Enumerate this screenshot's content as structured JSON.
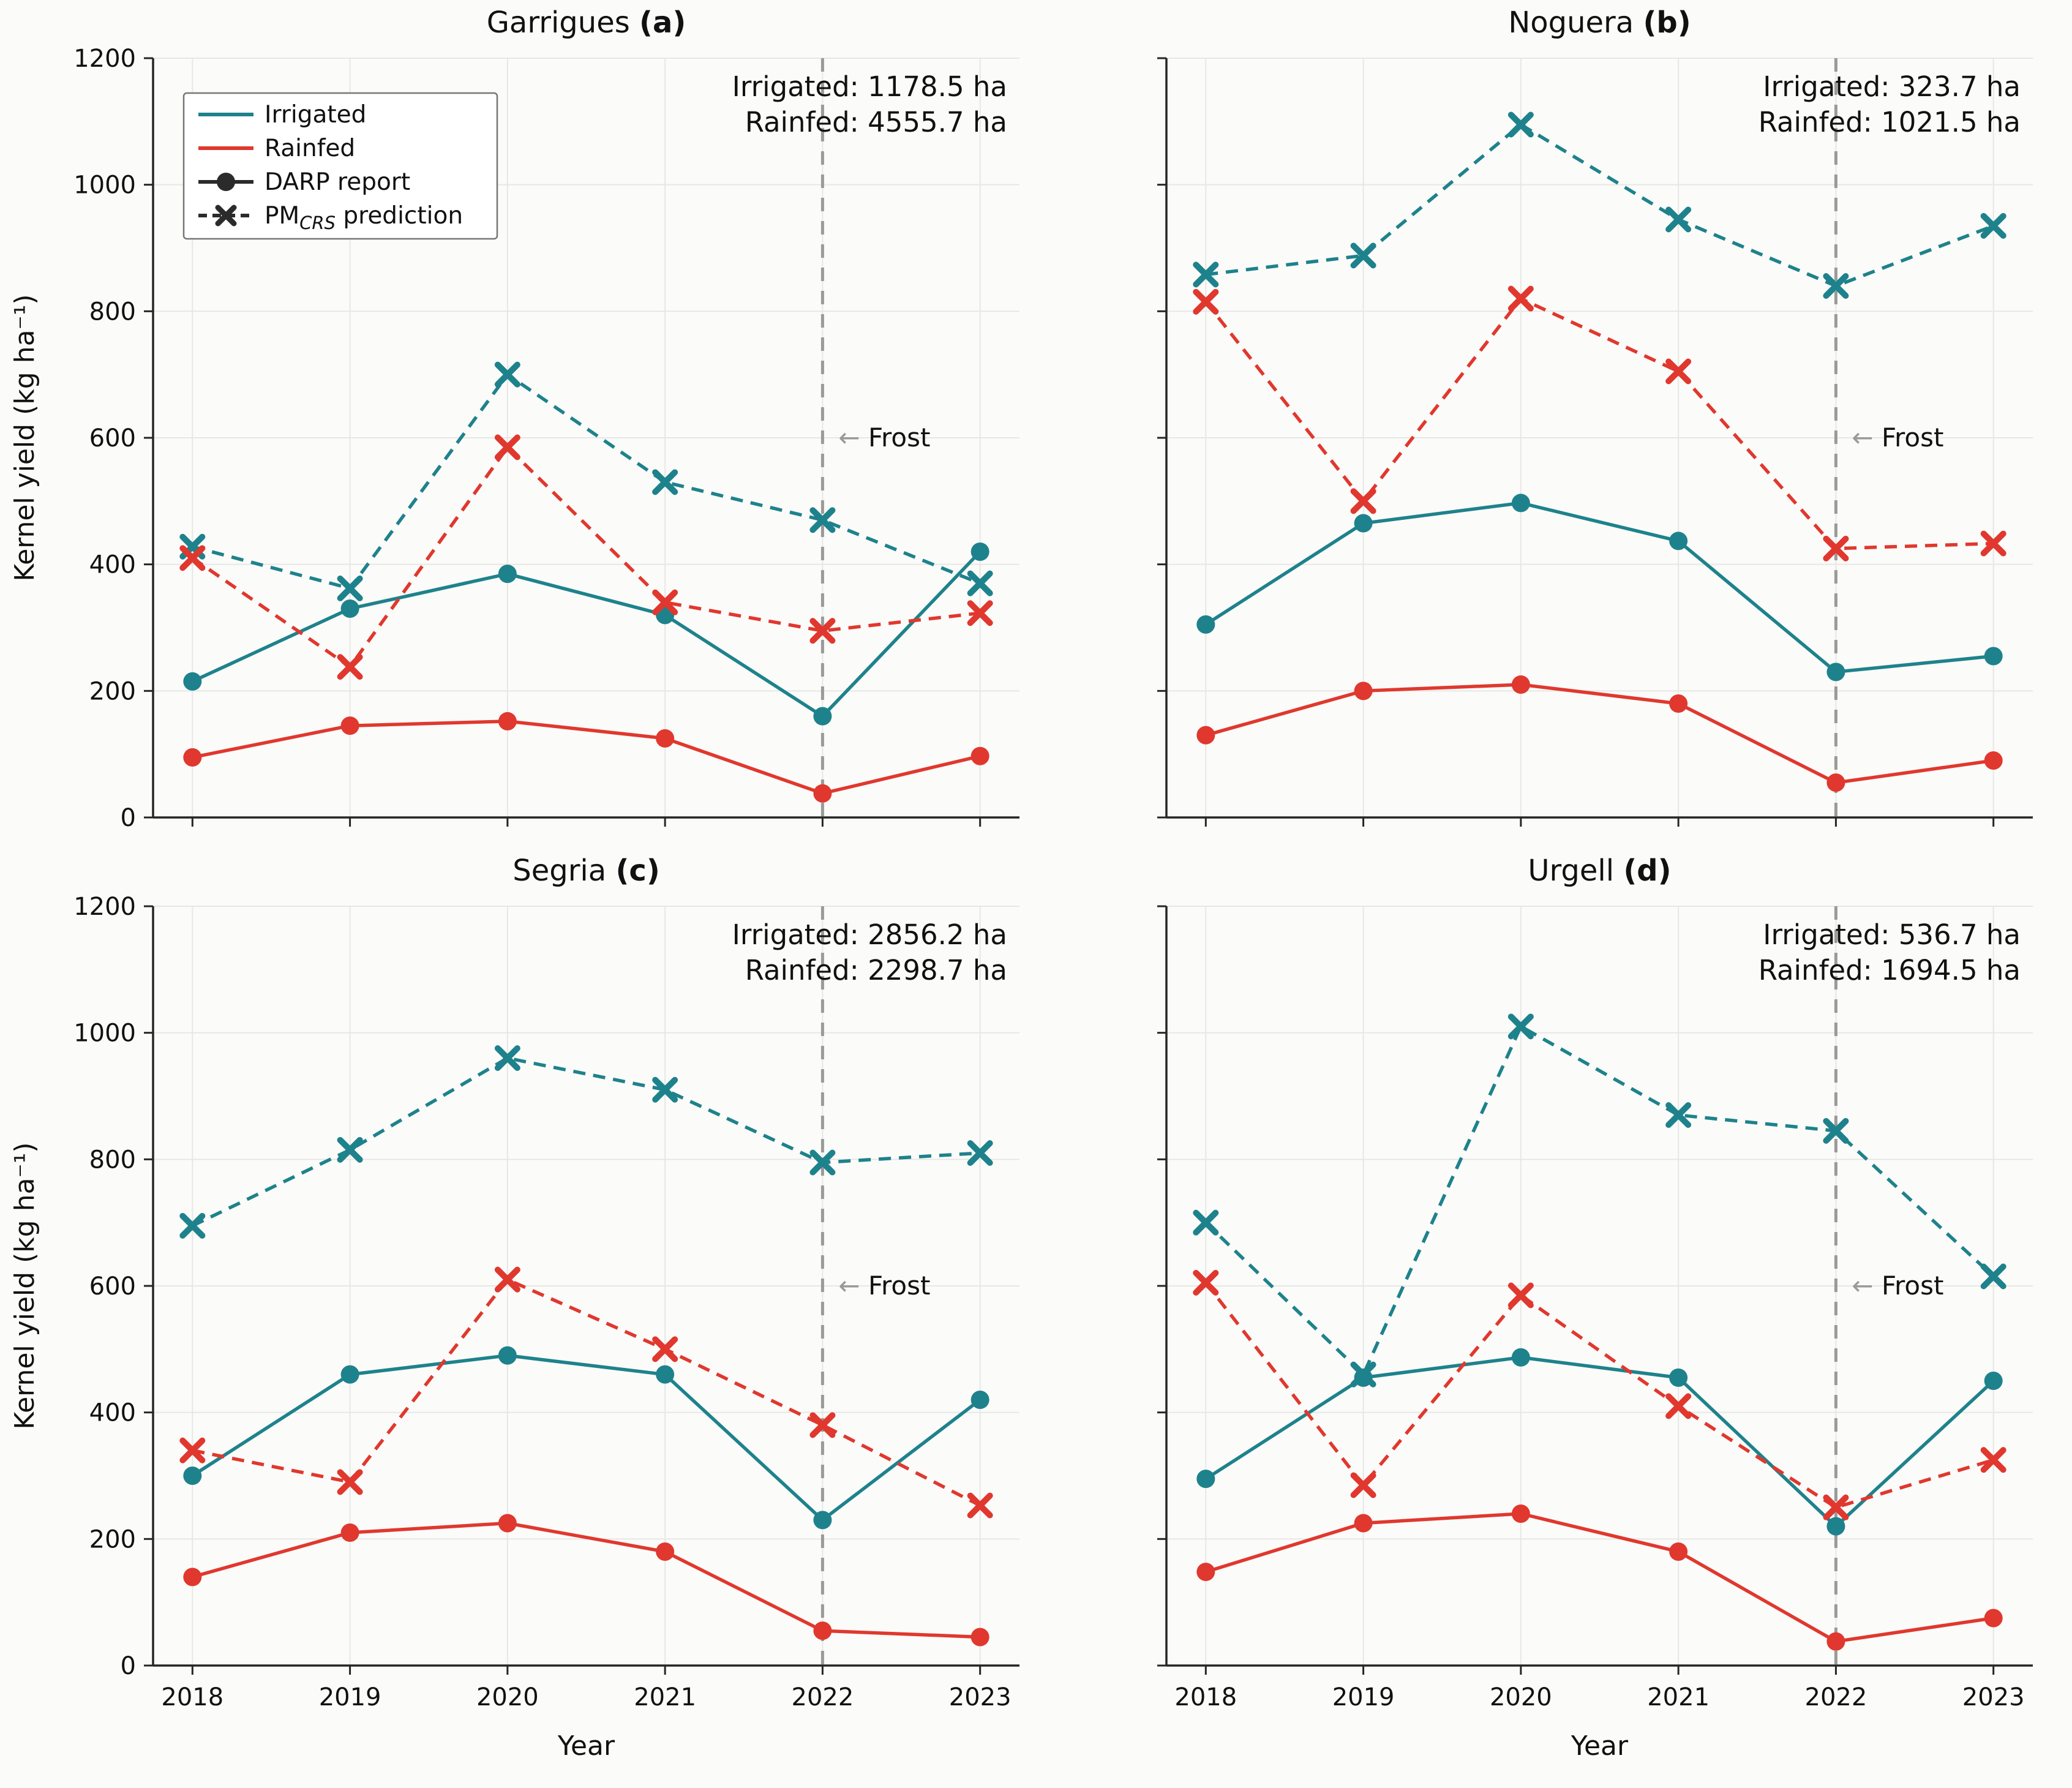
{
  "figure": {
    "ylabel": "Kernel yield (kg ha⁻¹)",
    "xlabel": "Year",
    "years": [
      2018,
      2019,
      2020,
      2021,
      2022,
      2023
    ],
    "ylim": [
      0,
      1200
    ],
    "yticks": [
      0,
      200,
      400,
      600,
      800,
      1000,
      1200
    ],
    "frost_year": 2022,
    "frost_label": "Frost",
    "frost_arrow": "←",
    "colors": {
      "irrigated": "#1e828c",
      "rainfed": "#e0382e",
      "marker": "#2b2b2b",
      "frost": "#9a9a9a",
      "grid": "#e7e7e5",
      "axis": "#262626",
      "text": "#111111"
    },
    "legend": [
      {
        "label": "Irrigated",
        "swatch": "line",
        "color_key": "irrigated"
      },
      {
        "label": "Rainfed",
        "swatch": "line",
        "color_key": "rainfed"
      },
      {
        "label": "DARP report",
        "swatch": "circle-line",
        "color_key": "marker"
      },
      {
        "label": "PM_CRS prediction",
        "swatch": "x-dashed",
        "color_key": "marker",
        "parts": [
          {
            "t": "PM"
          },
          {
            "t": "CRS",
            "sub": true
          },
          {
            "t": " prediction"
          }
        ]
      }
    ]
  },
  "chart_data": [
    {
      "type": "line",
      "title": "Garrigues",
      "letter": "(a)",
      "annotation": [
        "Irrigated: 1178.5 ha",
        "Rainfed: 4555.7 ha"
      ],
      "x": [
        2018,
        2019,
        2020,
        2021,
        2022,
        2023
      ],
      "series": [
        {
          "id": "irrigated-darp",
          "name": "Irrigated DARP report",
          "color_key": "irrigated",
          "style": "solid",
          "marker": "circle",
          "values": [
            215,
            330,
            385,
            320,
            160,
            420
          ]
        },
        {
          "id": "rainfed-darp",
          "name": "Rainfed DARP report",
          "color_key": "rainfed",
          "style": "solid",
          "marker": "circle",
          "values": [
            95,
            145,
            152,
            125,
            38,
            97
          ]
        },
        {
          "id": "irrigated-pmcrs",
          "name": "Irrigated PM_CRS prediction",
          "color_key": "irrigated",
          "style": "dashed",
          "marker": "x",
          "values": [
            428,
            362,
            700,
            530,
            470,
            370
          ]
        },
        {
          "id": "rainfed-pmcrs",
          "name": "Rainfed PM_CRS prediction",
          "color_key": "rainfed",
          "style": "dashed",
          "marker": "x",
          "values": [
            410,
            238,
            585,
            340,
            295,
            323
          ]
        }
      ]
    },
    {
      "type": "line",
      "title": "Noguera",
      "letter": "(b)",
      "annotation": [
        "Irrigated: 323.7 ha",
        "Rainfed: 1021.5 ha"
      ],
      "x": [
        2018,
        2019,
        2020,
        2021,
        2022,
        2023
      ],
      "series": [
        {
          "id": "irrigated-darp",
          "name": "Irrigated DARP report",
          "color_key": "irrigated",
          "style": "solid",
          "marker": "circle",
          "values": [
            305,
            465,
            497,
            437,
            230,
            255
          ]
        },
        {
          "id": "rainfed-darp",
          "name": "Rainfed DARP report",
          "color_key": "rainfed",
          "style": "solid",
          "marker": "circle",
          "values": [
            130,
            200,
            210,
            180,
            55,
            90
          ]
        },
        {
          "id": "irrigated-pmcrs",
          "name": "Irrigated PM_CRS prediction",
          "color_key": "irrigated",
          "style": "dashed",
          "marker": "x",
          "values": [
            858,
            888,
            1095,
            945,
            840,
            935
          ]
        },
        {
          "id": "rainfed-pmcrs",
          "name": "Rainfed PM_CRS prediction",
          "color_key": "rainfed",
          "style": "dashed",
          "marker": "x",
          "values": [
            815,
            500,
            820,
            705,
            425,
            433
          ]
        }
      ]
    },
    {
      "type": "line",
      "title": "Segria",
      "letter": "(c)",
      "annotation": [
        "Irrigated: 2856.2 ha",
        "Rainfed: 2298.7 ha"
      ],
      "x": [
        2018,
        2019,
        2020,
        2021,
        2022,
        2023
      ],
      "series": [
        {
          "id": "irrigated-darp",
          "name": "Irrigated DARP report",
          "color_key": "irrigated",
          "style": "solid",
          "marker": "circle",
          "values": [
            300,
            460,
            490,
            460,
            230,
            420
          ]
        },
        {
          "id": "rainfed-darp",
          "name": "Rainfed DARP report",
          "color_key": "rainfed",
          "style": "solid",
          "marker": "circle",
          "values": [
            140,
            210,
            225,
            180,
            55,
            45
          ]
        },
        {
          "id": "irrigated-pmcrs",
          "name": "Irrigated PM_CRS prediction",
          "color_key": "irrigated",
          "style": "dashed",
          "marker": "x",
          "values": [
            695,
            815,
            960,
            910,
            795,
            810
          ]
        },
        {
          "id": "rainfed-pmcrs",
          "name": "Rainfed PM_CRS prediction",
          "color_key": "rainfed",
          "style": "dashed",
          "marker": "x",
          "values": [
            340,
            290,
            610,
            500,
            380,
            253
          ]
        }
      ]
    },
    {
      "type": "line",
      "title": "Urgell",
      "letter": "(d)",
      "annotation": [
        "Irrigated: 536.7 ha",
        "Rainfed: 1694.5 ha"
      ],
      "x": [
        2018,
        2019,
        2020,
        2021,
        2022,
        2023
      ],
      "series": [
        {
          "id": "irrigated-darp",
          "name": "Irrigated DARP report",
          "color_key": "irrigated",
          "style": "solid",
          "marker": "circle",
          "values": [
            295,
            455,
            487,
            455,
            220,
            450
          ]
        },
        {
          "id": "rainfed-darp",
          "name": "Rainfed DARP report",
          "color_key": "rainfed",
          "style": "solid",
          "marker": "circle",
          "values": [
            148,
            225,
            240,
            180,
            38,
            75
          ]
        },
        {
          "id": "irrigated-pmcrs",
          "name": "Irrigated PM_CRS prediction",
          "color_key": "irrigated",
          "style": "dashed",
          "marker": "x",
          "values": [
            700,
            460,
            1010,
            870,
            845,
            615
          ]
        },
        {
          "id": "rainfed-pmcrs",
          "name": "Rainfed PM_CRS prediction",
          "color_key": "rainfed",
          "style": "dashed",
          "marker": "x",
          "values": [
            605,
            285,
            585,
            410,
            250,
            325
          ]
        }
      ]
    }
  ]
}
